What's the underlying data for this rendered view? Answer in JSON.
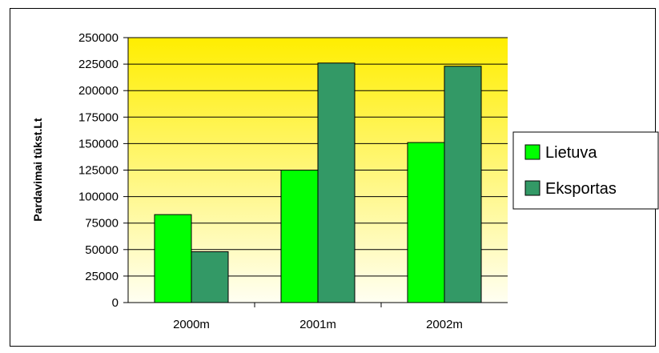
{
  "chart_data": {
    "type": "bar",
    "title": "",
    "xlabel": "",
    "ylabel": "Pardavimai  tūkst.Lt",
    "categories": [
      "2000m",
      "2001m",
      "2002m"
    ],
    "series": [
      {
        "name": "Lietuva",
        "values": [
          83000,
          125000,
          151000
        ],
        "color": "#00ff00"
      },
      {
        "name": "Eksportas",
        "values": [
          48000,
          226000,
          223000
        ],
        "color": "#339966"
      }
    ],
    "ylim": [
      0,
      250000
    ],
    "yticks": [
      0,
      25000,
      50000,
      75000,
      100000,
      125000,
      150000,
      175000,
      200000,
      225000,
      250000
    ],
    "grid": true,
    "legend": "right",
    "background": {
      "top": "#ffee00",
      "bottom": "#fffff2"
    }
  }
}
